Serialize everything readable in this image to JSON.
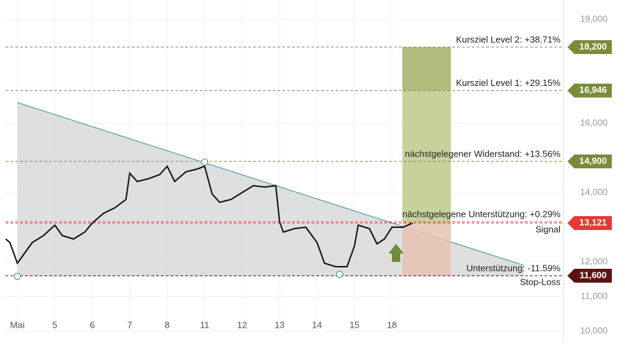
{
  "chart_data": {
    "type": "line",
    "categories": [
      "Mai",
      "5",
      "6",
      "7",
      "8",
      "11",
      "12",
      "13",
      "14",
      "15",
      "18"
    ],
    "x": [
      -0.31,
      -0.2,
      0,
      0.2,
      0.4,
      0.7,
      1,
      1.2,
      1.5,
      1.8,
      2,
      2.3,
      2.6,
      2.9,
      3.0,
      3.2,
      3.5,
      3.8,
      4.0,
      4.2,
      4.5,
      4.8,
      5.0,
      5.2,
      5.4,
      5.7,
      6.0,
      6.3,
      6.6,
      6.9,
      7.0,
      7.1,
      7.4,
      7.7,
      8.0,
      8.2,
      8.5,
      8.8,
      9.0,
      9.1,
      9.4,
      9.6,
      9.8,
      10.0,
      10.3,
      10.55
    ],
    "values": [
      12660,
      12560,
      11960,
      12260,
      12560,
      12760,
      13060,
      12760,
      12660,
      12860,
      13120,
      13400,
      13560,
      13800,
      14560,
      14320,
      14400,
      14520,
      14760,
      14320,
      14600,
      14680,
      14760,
      13960,
      13720,
      13800,
      14000,
      14200,
      14160,
      14200,
      13160,
      12860,
      12960,
      13000,
      12560,
      11960,
      11860,
      11860,
      12460,
      13060,
      12960,
      12520,
      12660,
      13000,
      13000,
      13120
    ],
    "color": "#111111",
    "ylim": [
      10000,
      19000
    ],
    "yticks": [
      {
        "value": 10000,
        "label": "10,000"
      },
      {
        "value": 11000,
        "label": "11,000"
      },
      {
        "value": 12000,
        "label": "12,000"
      },
      {
        "value": 14000,
        "label": "14,000"
      },
      {
        "value": 16000,
        "label": "16,000"
      },
      {
        "value": 19000,
        "label": "19,000"
      }
    ],
    "grid": true,
    "trend_line": {
      "x": [
        0,
        13.52
      ],
      "values": [
        16600,
        11900
      ],
      "color": "#5aa6a6"
    },
    "pivots": {
      "x": [
        0,
        5,
        8.6
      ],
      "values": [
        11580,
        14880,
        11640
      ]
    },
    "levels": [
      {
        "name": "Kursziel Level 2: +38.71%",
        "value": 18200,
        "value_label": "18,200",
        "color": "#7b8b3c"
      },
      {
        "name": "Kursziel Level 1: +29.15%",
        "value": 16946,
        "value_label": "16,946",
        "color": "#7b8b3c"
      },
      {
        "name": "nächstgelegener Widerstand: +13.56%",
        "value": 14900,
        "value_label": "14,900",
        "color": "#7b8b3c"
      },
      {
        "name": "nächstgelegene Unterstützung: +0.29%",
        "value": 13159,
        "color": "#e05050"
      },
      {
        "name": "Unterstützung: -11.59%",
        "value": 11600,
        "color": "#6b1a1a"
      }
    ],
    "signal": {
      "name": "Signal",
      "value": 13121,
      "value_label": "13,121",
      "color": "#e53935"
    },
    "stop_loss": {
      "name": "Stop-Loss",
      "value": 11600,
      "value_label": "11,600",
      "color": "#5d1212"
    }
  }
}
